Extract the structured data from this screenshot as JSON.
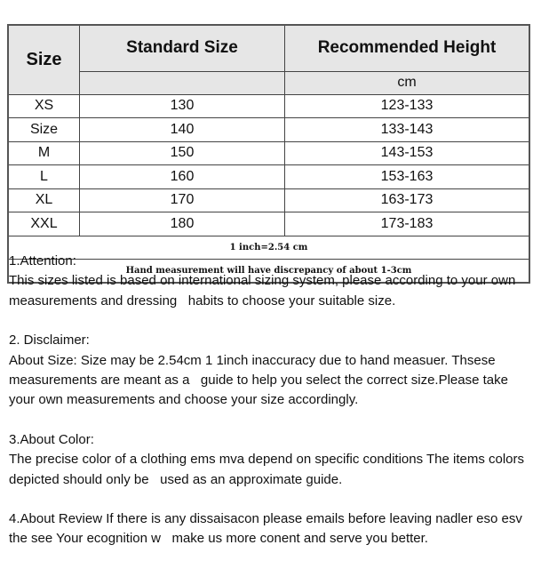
{
  "table": {
    "headers": {
      "size": "Size",
      "standard": "Standard Size",
      "recommended": "Recommended Height",
      "unit": "cm"
    },
    "rows": [
      {
        "size": "XS",
        "standard": "130",
        "height": "123-133"
      },
      {
        "size": "Size",
        "standard": "140",
        "height": "133-143"
      },
      {
        "size": "M",
        "standard": "150",
        "height": "143-153"
      },
      {
        "size": "L",
        "standard": "160",
        "height": "153-163"
      },
      {
        "size": "XL",
        "standard": "170",
        "height": "163-173"
      },
      {
        "size": "XXL",
        "standard": "180",
        "height": "173-183"
      }
    ],
    "note1": "1 inch=2.54 cm",
    "note2": "Hand measurement will have discrepancy of about 1-3cm"
  },
  "sections": [
    {
      "title": "1.Attention:",
      "body": "This sizes listed is based on international sizing system, please according to your own measurements and dressing   habits to choose your suitable size."
    },
    {
      "title": "2. Disclaimer:",
      "body": "About Size: Size may be 2.54cm 1 1inch inaccuracy due to hand measuer. Thsese measurements are meant as a   guide to help you select the correct size.Please take your own measurements and choose your size accordingly."
    },
    {
      "title": "3.About Color:",
      "body": "The precise color of a clothing ems mva depend on specific conditions The items colors depicted should only be   used as an approximate guide."
    },
    {
      "title": "4.About Review If there is any dissaisacon please emails before leaving nadler eso esv the see Your ecognition w   make us more conent and serve you better.",
      "body": ""
    }
  ]
}
